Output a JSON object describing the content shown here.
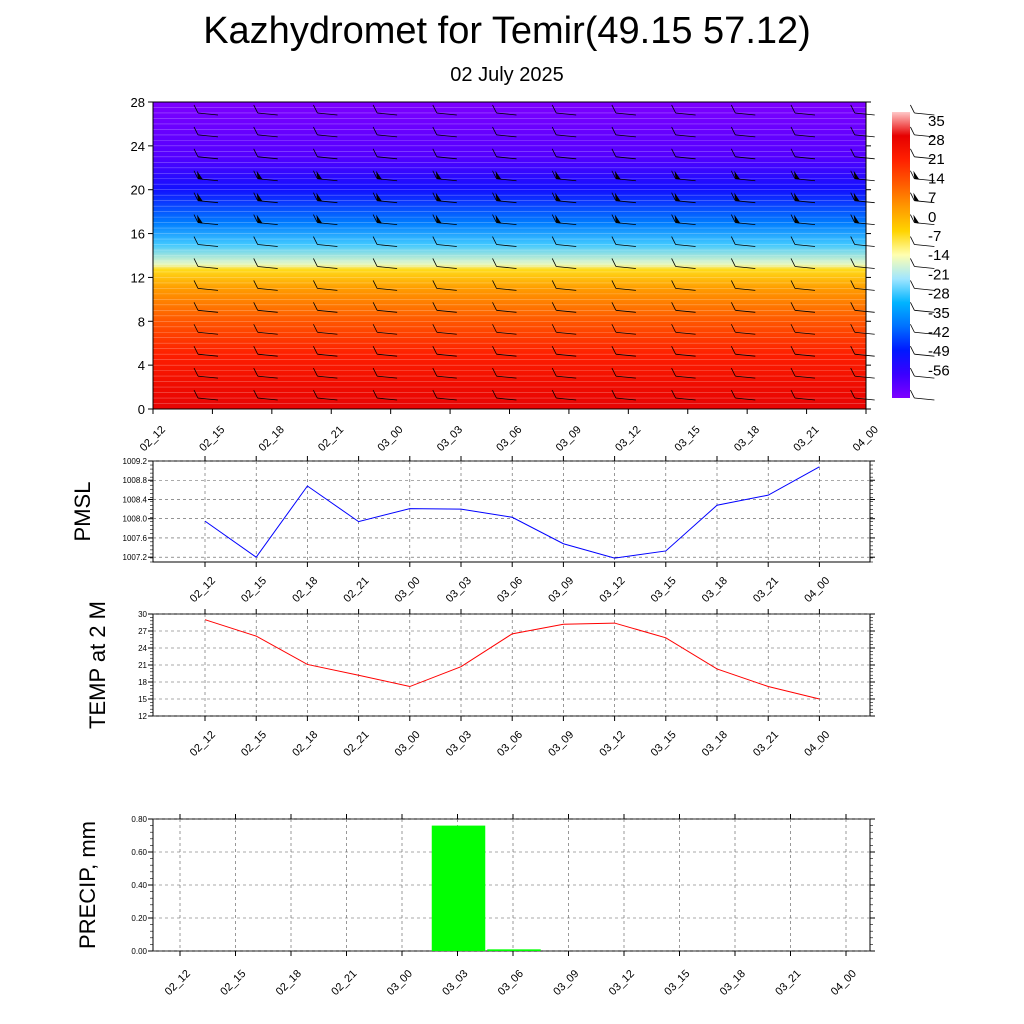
{
  "title": "Kazhydromet for Temir(49.15 57.12)",
  "subtitle": "02 July 2025",
  "chart_data": [
    {
      "type": "heatmap",
      "name": "temperature-wind-cross-section",
      "y_ticks": [
        0,
        4,
        8,
        12,
        16,
        20,
        24,
        28
      ],
      "ylim": [
        0,
        28
      ],
      "x_ticks": [
        "02_12",
        "02_15",
        "02_18",
        "02_21",
        "03_00",
        "03_03",
        "03_06",
        "03_09",
        "03_12",
        "03_15",
        "03_18",
        "03_21",
        "04_00"
      ],
      "colorbar_labels": [
        "35",
        "28",
        "21",
        "14",
        "7",
        "0",
        "-7",
        "-14",
        "-21",
        "-28",
        "-35",
        "-42",
        "-49",
        "-56"
      ],
      "colorbar_range": [
        -60,
        38
      ],
      "temperature_by_level": [
        {
          "level": 0,
          "temp": 30
        },
        {
          "level": 2,
          "temp": 27
        },
        {
          "level": 5,
          "temp": 22
        },
        {
          "level": 8,
          "temp": 14
        },
        {
          "level": 11,
          "temp": 5
        },
        {
          "level": 12.7,
          "temp": -4
        },
        {
          "level": 13.2,
          "temp": -13
        },
        {
          "level": 15,
          "temp": -24
        },
        {
          "level": 17,
          "temp": -34
        },
        {
          "level": 20,
          "temp": -46
        },
        {
          "level": 23,
          "temp": -55
        },
        {
          "level": 28,
          "temp": -60
        }
      ],
      "wind_barb_levels": [
        1,
        3,
        5,
        7,
        9,
        11,
        13,
        15,
        17,
        19,
        21,
        23,
        25,
        27
      ],
      "colors": {
        "scale": [
          "#7e00ff",
          "#3a00ff",
          "#0018ff",
          "#0070ff",
          "#00b4ff",
          "#a0e6ff",
          "#ffffb0",
          "#ffd400",
          "#ff9a00",
          "#ff5a00",
          "#ff2000",
          "#e60000",
          "#ffc8c8"
        ]
      }
    },
    {
      "type": "line",
      "name": "pmsl",
      "ylabel": "PMSL",
      "x": [
        "02_12",
        "02_15",
        "02_18",
        "02_21",
        "03_00",
        "03_03",
        "03_06",
        "03_09",
        "03_12",
        "03_15",
        "03_18",
        "03_21",
        "04_00"
      ],
      "values": [
        1007.95,
        1007.2,
        1008.68,
        1007.94,
        1008.21,
        1008.2,
        1008.03,
        1007.48,
        1007.18,
        1007.33,
        1008.28,
        1008.49,
        1009.08
      ],
      "ylim": [
        1007.1,
        1009.2
      ],
      "y_ticks": [
        "1007.2",
        "1007.6",
        "1008.0",
        "1008.4",
        "1008.8",
        "1009.2"
      ],
      "grid": true,
      "color": "#0000ff"
    },
    {
      "type": "line",
      "name": "temp-2m",
      "ylabel": "TEMP at 2 M",
      "x": [
        "02_12",
        "02_15",
        "02_18",
        "02_21",
        "03_00",
        "03_03",
        "03_06",
        "03_09",
        "03_12",
        "03_15",
        "03_18",
        "03_21",
        "04_00"
      ],
      "values": [
        29.0,
        26.1,
        21.1,
        19.2,
        17.2,
        20.7,
        26.5,
        28.2,
        28.4,
        25.8,
        20.3,
        17.2,
        15.0
      ],
      "ylim": [
        12,
        30
      ],
      "y_ticks": [
        "12",
        "15",
        "18",
        "21",
        "24",
        "27",
        "30"
      ],
      "grid": true,
      "color": "#ff0000"
    },
    {
      "type": "bar",
      "name": "precip",
      "ylabel": "PRECIP, mm",
      "x": [
        "02_12",
        "02_15",
        "02_18",
        "02_21",
        "03_00",
        "03_03",
        "03_06",
        "03_09",
        "03_12",
        "03_15",
        "03_18",
        "03_21",
        "04_00"
      ],
      "values": [
        0,
        0,
        0,
        0,
        0,
        0.76,
        0.01,
        0,
        0,
        0,
        0,
        0,
        0
      ],
      "ylim": [
        0,
        0.8
      ],
      "y_ticks": [
        "0.00",
        "0.20",
        "0.40",
        "0.60",
        "0.80"
      ],
      "grid": true,
      "color": "#00ff00"
    }
  ]
}
